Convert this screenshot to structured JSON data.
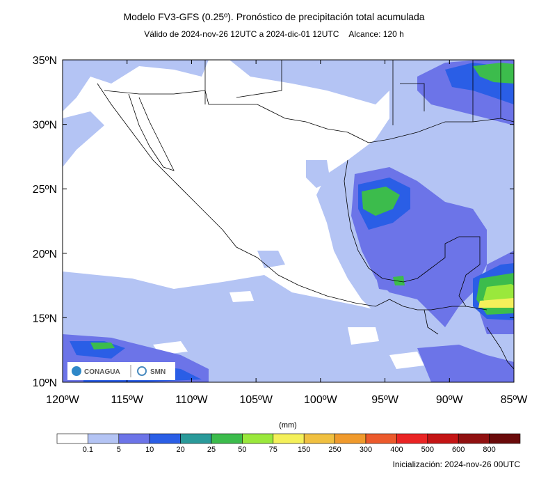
{
  "title": "Modelo FV3-GFS (0.25º). Pronóstico de precipitación total acumulada",
  "subtitle": {
    "validity": "Válido de 2024-nov-26 12UTC a 2024-dic-01 12UTC",
    "range": "Alcance: 120 h"
  },
  "map": {
    "lon_range": [
      -120,
      -85
    ],
    "lat_range": [
      10,
      35
    ],
    "lat_labels": [
      "35ºN",
      "30ºN",
      "25ºN",
      "20ºN",
      "15ºN",
      "10ºN"
    ],
    "lon_labels": [
      "120ºW",
      "115ºW",
      "110ºW",
      "105ºW",
      "100ºW",
      "95ºW",
      "90ºW",
      "85ºW"
    ]
  },
  "logos": {
    "conagua": "CONAGUA",
    "smn": "SMN"
  },
  "colorbar": {
    "unit": "(mm)",
    "labels": [
      "0.1",
      "5",
      "10",
      "20",
      "25",
      "50",
      "75",
      "150",
      "250",
      "300",
      "400",
      "500",
      "600",
      "800"
    ],
    "colors": [
      "#ffffff",
      "#b4c4f4",
      "#6c74e8",
      "#2a5ee6",
      "#2a9a9a",
      "#3cbc4c",
      "#9ae83c",
      "#f4f05a",
      "#f0c040",
      "#f09a2c",
      "#ec5a2c",
      "#ea2424",
      "#c41414",
      "#901010",
      "#6a0a0a"
    ]
  },
  "initialization": "Inicialización: 2024-nov-26 00UTC"
}
